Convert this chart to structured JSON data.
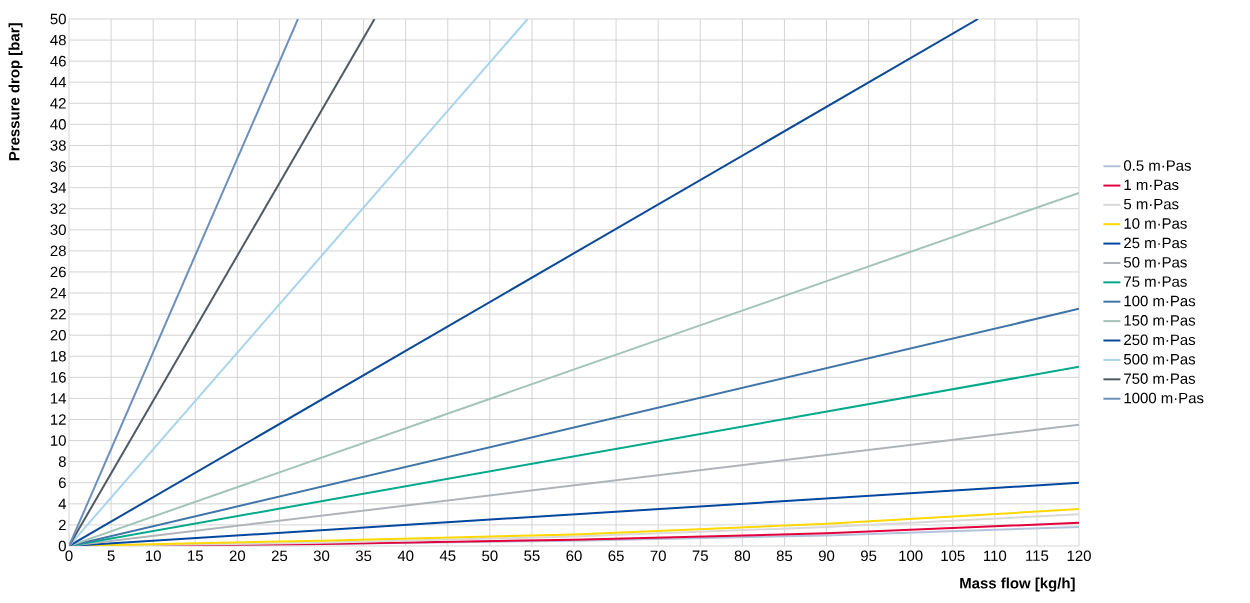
{
  "chart_data": {
    "type": "line",
    "xlabel": "Mass flow [kg/h]",
    "ylabel": "Pressure drop [bar]",
    "xlim": [
      0,
      120
    ],
    "ylim": [
      0,
      50
    ],
    "xticks": [
      0,
      5,
      10,
      15,
      20,
      25,
      30,
      35,
      40,
      45,
      50,
      55,
      60,
      65,
      70,
      75,
      80,
      85,
      90,
      95,
      100,
      105,
      110,
      115,
      120
    ],
    "yticks": [
      0,
      2,
      4,
      6,
      8,
      10,
      12,
      14,
      16,
      18,
      20,
      22,
      24,
      26,
      28,
      30,
      32,
      34,
      36,
      38,
      40,
      42,
      44,
      46,
      48,
      50
    ],
    "grid": true,
    "legend": "right",
    "marker": "none",
    "line_style": "solid",
    "series": [
      {
        "name": "0.5 m·Pas",
        "color": "#b4c3dc",
        "x": [
          0,
          30,
          60,
          90,
          120
        ],
        "values": [
          0,
          0.2,
          0.5,
          1.0,
          1.8
        ]
      },
      {
        "name": "1 m·Pas",
        "color": "#e4003c",
        "x": [
          0,
          30,
          60,
          90,
          120
        ],
        "values": [
          0,
          0.2,
          0.6,
          1.2,
          2.2
        ]
      },
      {
        "name": "5 m·Pas",
        "color": "#d9d9d9",
        "x": [
          0,
          30,
          60,
          90,
          120
        ],
        "values": [
          0,
          0.3,
          0.9,
          1.8,
          3.0
        ]
      },
      {
        "name": "10 m·Pas",
        "color": "#ffd800",
        "x": [
          0,
          30,
          60,
          90,
          120
        ],
        "values": [
          0,
          0.5,
          1.1,
          2.1,
          3.5
        ]
      },
      {
        "name": "25 m·Pas",
        "color": "#0047a0",
        "x": [
          0,
          120
        ],
        "values": [
          0,
          6.0
        ]
      },
      {
        "name": "50 m·Pas",
        "color": "#b0b4b8",
        "x": [
          0,
          120
        ],
        "values": [
          0,
          11.5
        ]
      },
      {
        "name": "75 m·Pas",
        "color": "#00a98a",
        "x": [
          0,
          120
        ],
        "values": [
          0,
          17.0
        ]
      },
      {
        "name": "100 m·Pas",
        "color": "#3e74a8",
        "x": [
          0,
          120
        ],
        "values": [
          0,
          22.5
        ]
      },
      {
        "name": "150 m·Pas",
        "color": "#a3c4b8",
        "x": [
          0,
          120
        ],
        "values": [
          0,
          33.5
        ]
      },
      {
        "name": "250 m·Pas",
        "color": "#0a4a96",
        "x": [
          0,
          108
        ],
        "values": [
          0,
          50
        ]
      },
      {
        "name": "500 m·Pas",
        "color": "#a8d4ec",
        "x": [
          0,
          54.5
        ],
        "values": [
          0,
          50
        ]
      },
      {
        "name": "750 m·Pas",
        "color": "#4f5a63",
        "x": [
          0,
          36.3
        ],
        "values": [
          0,
          50
        ]
      },
      {
        "name": "1000 m·Pas",
        "color": "#6d8fbc",
        "x": [
          0,
          27.2
        ],
        "values": [
          0,
          50
        ]
      }
    ]
  }
}
